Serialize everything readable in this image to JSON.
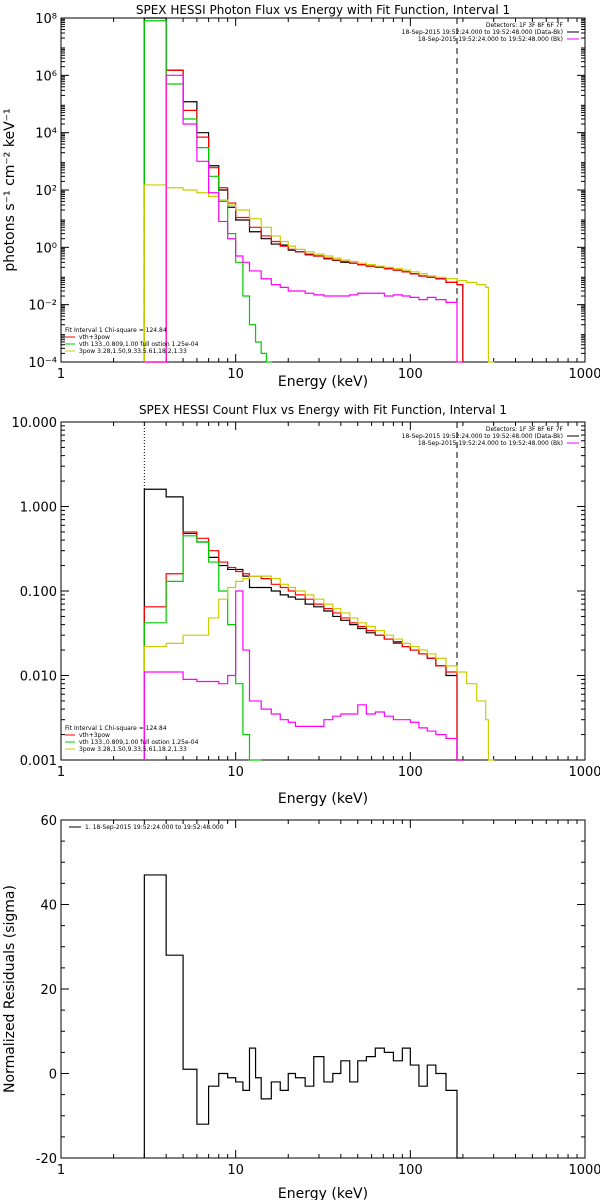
{
  "chart_data": [
    {
      "type": "line",
      "title": "SPEX HESSI Photon Flux vs Energy with Fit Function, Interval 1",
      "xlabel": "Energy (keV)",
      "ylabel": "photons s⁻¹ cm⁻² keV⁻¹",
      "xscale": "log",
      "yscale": "log",
      "xlim": [
        1,
        1000
      ],
      "ylim": [
        0.0001,
        100000000
      ],
      "x_ticks": [
        1,
        10,
        100,
        1000
      ],
      "x_tick_labels": [
        "1",
        "10",
        "100",
        "1000"
      ],
      "y_ticks": [
        0.0001,
        0.01,
        1,
        100,
        10000,
        1000000,
        100000000
      ],
      "y_tick_labels": [
        "10⁻⁴",
        "10⁻²",
        "10⁰",
        "10²",
        "10⁴",
        "10⁶",
        "10⁸"
      ],
      "legend_top": [
        "Detectors: 1F 3F 8F 6F 7F",
        "18-Sep-2015 19:52:24.000 to 19:52:48.000 (Data-Bk)",
        "18-Sep-2015 19:52:24.000 to 19:52:48.000 (Bk)"
      ],
      "legend_top_colors": [
        "",
        "#000000",
        "#ff00ff"
      ],
      "legend_bottom": [
        "Fit Interval 1    Chi-square = 124.84",
        "vth+3pow",
        "vth 133.,0.809,1.00  full ostion 1.25e-04",
        "3pow 3.28,1.50,9.33,5.61,18.2,1.33"
      ],
      "legend_bottom_colors": [
        "",
        "#ff0000",
        "#00cc00",
        "#cccc00"
      ],
      "vlines": [
        {
          "x": 3,
          "style": "dotted"
        },
        {
          "x": 185,
          "style": "dashed"
        }
      ],
      "series": [
        {
          "color": "#000000",
          "x": [
            3,
            4,
            5,
            6,
            7,
            8,
            9,
            10,
            12,
            14,
            16,
            18,
            20,
            22,
            25,
            28,
            32,
            36,
            40,
            45,
            50,
            56,
            63,
            71,
            80,
            90,
            100,
            112,
            125,
            140,
            160,
            185
          ],
          "y": [
            100000000,
            1500000,
            120000,
            10000,
            700,
            100,
            25,
            9,
            3.5,
            2,
            1.3,
            1.2,
            0.8,
            0.7,
            0.55,
            0.5,
            0.4,
            0.35,
            0.3,
            0.28,
            0.25,
            0.22,
            0.2,
            0.18,
            0.16,
            0.14,
            0.12,
            0.1,
            0.09,
            0.08,
            0.06,
            0.05
          ]
        },
        {
          "color": "#ff0000",
          "x": [
            3,
            4,
            5,
            6,
            7,
            8,
            9,
            10,
            12,
            14,
            16,
            18,
            20,
            22,
            25,
            28,
            32,
            36,
            40,
            45,
            50,
            56,
            63,
            71,
            80,
            90,
            100,
            112,
            125,
            140,
            160,
            185
          ],
          "y": [
            0.0001,
            1500000,
            60000,
            7000,
            600,
            120,
            35,
            11,
            5,
            2.5,
            1.6,
            1.1,
            0.85,
            0.7,
            0.58,
            0.5,
            0.42,
            0.36,
            0.32,
            0.28,
            0.25,
            0.22,
            0.2,
            0.18,
            0.16,
            0.14,
            0.12,
            0.1,
            0.09,
            0.08,
            0.06,
            0.05
          ]
        },
        {
          "color": "#00cc00",
          "x": [
            3,
            4,
            5,
            6,
            7,
            8,
            9,
            10,
            11,
            12,
            13,
            14,
            15
          ],
          "y": [
            80000000,
            500000,
            30000,
            3000,
            300,
            40,
            3,
            0.3,
            0.02,
            0.002,
            0.0005,
            0.0002,
            0.0001
          ]
        },
        {
          "color": "#cccc00",
          "x": [
            3,
            4,
            5,
            6,
            7,
            8,
            9,
            10,
            12,
            14,
            16,
            18,
            20,
            22,
            25,
            28,
            32,
            36,
            40,
            45,
            50,
            56,
            63,
            71,
            80,
            90,
            100,
            112,
            125,
            140,
            160,
            185,
            210,
            240,
            270,
            280
          ],
          "y": [
            150,
            120,
            100,
            80,
            60,
            45,
            30,
            20,
            10,
            5,
            2.5,
            1.6,
            1.1,
            0.85,
            0.7,
            0.58,
            0.5,
            0.42,
            0.36,
            0.32,
            0.28,
            0.25,
            0.22,
            0.2,
            0.18,
            0.16,
            0.14,
            0.12,
            0.1,
            0.09,
            0.08,
            0.07,
            0.06,
            0.05,
            0.04,
            0.0001
          ]
        },
        {
          "color": "#ff00ff",
          "x": [
            3,
            4,
            5,
            6,
            7,
            8,
            9,
            10,
            11,
            12,
            14,
            16,
            18,
            20,
            22,
            25,
            28,
            32,
            36,
            40,
            45,
            50,
            56,
            63,
            71,
            80,
            90,
            100,
            112,
            125,
            140,
            160,
            185
          ],
          "y": [
            0.0001,
            1000000,
            20000,
            1000,
            80,
            8,
            2,
            0.5,
            0.3,
            0.15,
            0.08,
            0.05,
            0.04,
            0.03,
            0.03,
            0.025,
            0.022,
            0.02,
            0.02,
            0.02,
            0.022,
            0.025,
            0.025,
            0.025,
            0.02,
            0.022,
            0.02,
            0.018,
            0.015,
            0.018,
            0.015,
            0.012,
            0.0001
          ]
        }
      ]
    },
    {
      "type": "line",
      "title": "SPEX HESSI Count Flux vs Energy with Fit Function, Interval 1",
      "xlabel": "Energy (keV)",
      "ylabel": "",
      "xscale": "log",
      "yscale": "log",
      "xlim": [
        1,
        1000
      ],
      "ylim": [
        0.001,
        10
      ],
      "x_ticks": [
        1,
        10,
        100,
        1000
      ],
      "x_tick_labels": [
        "1",
        "10",
        "100",
        "1000"
      ],
      "y_ticks": [
        0.001,
        0.01,
        0.1,
        1,
        10
      ],
      "y_tick_labels": [
        "0.001",
        "0.010",
        "0.100",
        "1.000",
        "10.000"
      ],
      "legend_top": [
        "Detectors: 1F 3F 8F 6F 7F",
        "18-Sep-2015 19:52:24.000 to 19:52:48.000 (Data-Bk)",
        "18-Sep-2015 19:52:24.000 to 19:52:48.000 (Bk)"
      ],
      "legend_top_colors": [
        "",
        "#000000",
        "#ff00ff"
      ],
      "legend_bottom": [
        "Fit Interval 1    Chi-square = 124.84",
        "vth+3pow",
        "vth 133.,0.809,1.00  full ostion 1.25e-04",
        "3pow 3.28,1.50,9.33,5.61,18.2,1.33"
      ],
      "legend_bottom_colors": [
        "",
        "#ff0000",
        "#00cc00",
        "#cccc00"
      ],
      "vlines": [
        {
          "x": 3,
          "style": "dotted"
        },
        {
          "x": 185,
          "style": "dashed"
        }
      ],
      "series": [
        {
          "color": "#000000",
          "x": [
            3,
            4,
            5,
            6,
            7,
            8,
            9,
            10,
            11,
            12,
            14,
            16,
            18,
            20,
            22,
            25,
            28,
            32,
            36,
            40,
            45,
            50,
            56,
            63,
            71,
            80,
            90,
            100,
            112,
            125,
            140,
            160,
            185
          ],
          "y": [
            1.6,
            1.3,
            0.48,
            0.38,
            0.25,
            0.2,
            0.18,
            0.18,
            0.15,
            0.11,
            0.11,
            0.1,
            0.09,
            0.085,
            0.08,
            0.07,
            0.065,
            0.058,
            0.05,
            0.045,
            0.04,
            0.036,
            0.032,
            0.03,
            0.027,
            0.025,
            0.022,
            0.02,
            0.018,
            0.016,
            0.013,
            0.01,
            0.001
          ]
        },
        {
          "color": "#ff0000",
          "x": [
            3,
            4,
            5,
            6,
            7,
            8,
            9,
            10,
            11,
            12,
            14,
            16,
            18,
            20,
            22,
            25,
            28,
            32,
            36,
            40,
            45,
            50,
            56,
            63,
            71,
            80,
            90,
            100,
            112,
            125,
            140,
            160,
            185
          ],
          "y": [
            0.065,
            0.16,
            0.5,
            0.42,
            0.3,
            0.22,
            0.19,
            0.17,
            0.16,
            0.15,
            0.14,
            0.12,
            0.11,
            0.1,
            0.09,
            0.08,
            0.07,
            0.062,
            0.055,
            0.048,
            0.042,
            0.038,
            0.034,
            0.03,
            0.027,
            0.024,
            0.022,
            0.02,
            0.018,
            0.016,
            0.013,
            0.011,
            0.001
          ]
        },
        {
          "color": "#00cc00",
          "x": [
            3,
            4,
            5,
            6,
            7,
            8,
            9,
            10,
            11,
            12,
            13
          ],
          "y": [
            0.042,
            0.13,
            0.45,
            0.38,
            0.22,
            0.1,
            0.04,
            0.008,
            0.002,
            0.001,
            0.001
          ]
        },
        {
          "color": "#cccc00",
          "x": [
            3,
            4,
            5,
            6,
            7,
            8,
            9,
            10,
            11,
            12,
            14,
            16,
            18,
            20,
            22,
            25,
            28,
            32,
            36,
            40,
            45,
            50,
            56,
            63,
            71,
            80,
            90,
            100,
            112,
            125,
            140,
            160,
            185,
            210,
            240,
            270,
            280
          ],
          "y": [
            0.022,
            0.024,
            0.03,
            0.03,
            0.048,
            0.08,
            0.11,
            0.13,
            0.14,
            0.15,
            0.15,
            0.14,
            0.12,
            0.11,
            0.1,
            0.09,
            0.08,
            0.07,
            0.062,
            0.055,
            0.048,
            0.042,
            0.038,
            0.034,
            0.03,
            0.027,
            0.024,
            0.022,
            0.02,
            0.018,
            0.016,
            0.013,
            0.011,
            0.008,
            0.005,
            0.003,
            0.001
          ]
        },
        {
          "color": "#ff00ff",
          "x": [
            3,
            4,
            5,
            6,
            7,
            8,
            9,
            10,
            11,
            12,
            14,
            16,
            18,
            20,
            22,
            25,
            28,
            32,
            36,
            40,
            45,
            50,
            56,
            63,
            71,
            80,
            90,
            100,
            112,
            125,
            140,
            160,
            185
          ],
          "y": [
            0.011,
            0.011,
            0.009,
            0.0085,
            0.0085,
            0.008,
            0.01,
            0.1,
            0.02,
            0.005,
            0.004,
            0.0035,
            0.003,
            0.0028,
            0.0025,
            0.0025,
            0.0025,
            0.003,
            0.0033,
            0.0035,
            0.0035,
            0.0045,
            0.0035,
            0.0037,
            0.0033,
            0.003,
            0.003,
            0.0028,
            0.0024,
            0.0022,
            0.002,
            0.0018,
            0.001
          ]
        }
      ]
    },
    {
      "type": "line",
      "title": "",
      "xlabel": "Energy (keV)",
      "ylabel": "Normalized Residuals (sigma)",
      "xscale": "log",
      "yscale": "linear",
      "xlim": [
        1,
        1000
      ],
      "ylim": [
        -20,
        60
      ],
      "x_ticks": [
        1,
        10,
        100,
        1000
      ],
      "x_tick_labels": [
        "1",
        "10",
        "100",
        "1000"
      ],
      "y_ticks": [
        -20,
        0,
        20,
        40,
        60
      ],
      "y_tick_labels": [
        "-20",
        "0",
        "20",
        "40",
        "60"
      ],
      "legend_top": [
        "1. 18-Sep-2015 19:52:24.000 to 19:52:48.000"
      ],
      "legend_top_colors": [
        "#000000"
      ],
      "legend_bottom": [],
      "legend_bottom_colors": [],
      "vlines": [],
      "series": [
        {
          "color": "#000000",
          "x": [
            3,
            4,
            5,
            6,
            7,
            8,
            9,
            10,
            11,
            12,
            13,
            14,
            16,
            18,
            20,
            22,
            25,
            28,
            32,
            36,
            40,
            45,
            50,
            56,
            63,
            71,
            80,
            90,
            100,
            112,
            125,
            140,
            160,
            185
          ],
          "y": [
            47,
            28,
            1,
            -12,
            -3,
            0,
            -1,
            -2,
            -4,
            6,
            -1,
            -6,
            -2,
            -4,
            0,
            -1,
            -3,
            4,
            -2,
            0,
            3,
            -2,
            3,
            4,
            6,
            5,
            3,
            6,
            2,
            -3,
            2,
            0,
            -4,
            -20
          ]
        }
      ]
    }
  ]
}
